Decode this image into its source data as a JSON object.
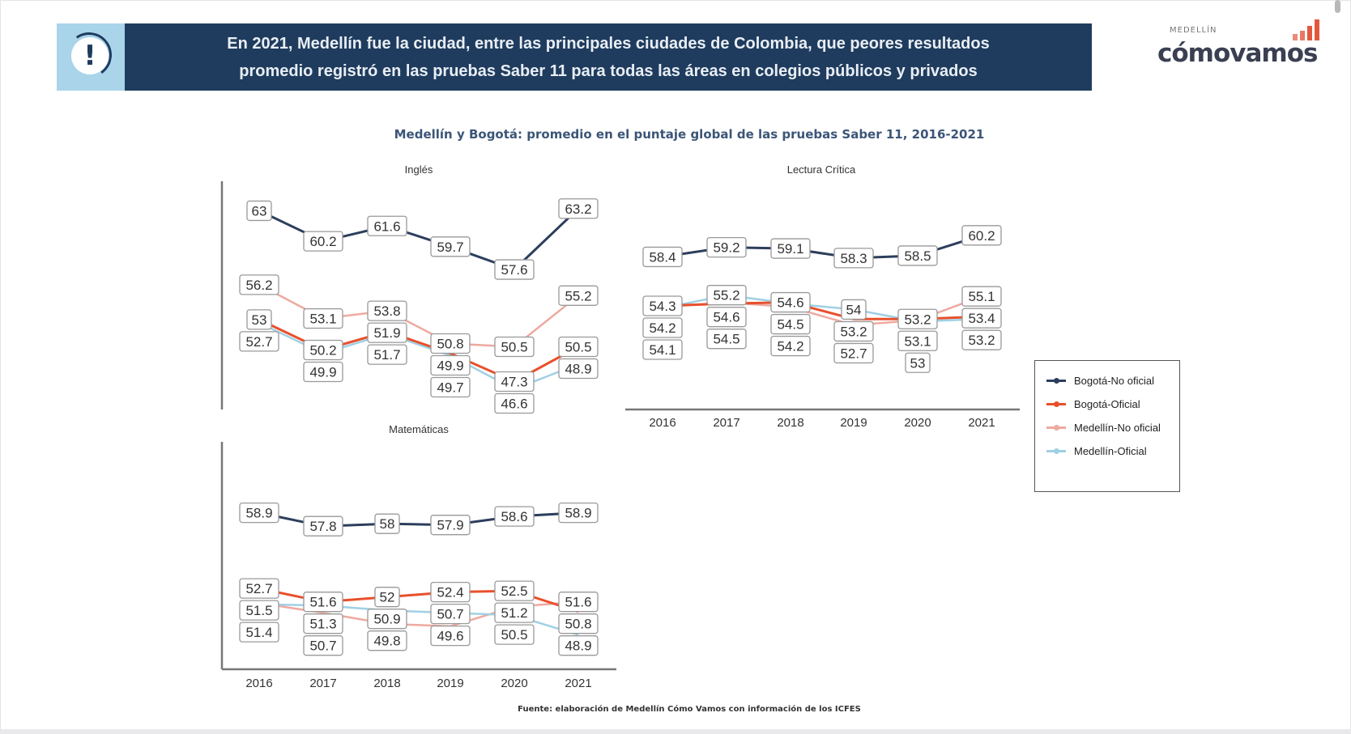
{
  "header": {
    "icon": "exclamation-icon",
    "line1": "En 2021, Medellín fue la ciudad, entre las principales ciudades de Colombia, que peores resultados",
    "line2": "promedio registró en las pruebas Saber 11 para todas las áreas en colegios públicos y privados"
  },
  "logo": {
    "small": "MEDELLÍN",
    "main": "cómovamos"
  },
  "colors": {
    "header_bg": "#1f3c5e",
    "icon_bg": "#a9d4ea",
    "bogota_no_oficial": "#2c3e5c",
    "bogota_oficial": "#e8502c",
    "medellin_no_oficial": "#eea9a0",
    "medellin_oficial": "#9fd0e4"
  },
  "chart_title": "Medellín y Bogotá: promedio en el puntaje global de las pruebas Saber 11, 2016-2021",
  "footnote": "Fuente: elaboración de Medellín Cómo Vamos con información de los ICFES",
  "legend": [
    {
      "name": "Bogotá-No oficial",
      "color": "#2c3e5c"
    },
    {
      "name": "Bogotá-Oficial",
      "color": "#e8502c"
    },
    {
      "name": "Medellín-No oficial",
      "color": "#eea9a0"
    },
    {
      "name": "Medellín-Oficial",
      "color": "#9fd0e4"
    }
  ],
  "chart_data": [
    {
      "type": "line",
      "title": "Inglés",
      "categories": [
        "2016",
        "2017",
        "2018",
        "2019",
        "2020",
        "2021"
      ],
      "show_x_ticks": false,
      "legend": "right",
      "grid": false,
      "series": [
        {
          "name": "Bogotá-No oficial",
          "values": [
            63,
            60.2,
            61.6,
            59.7,
            57.6,
            63.2
          ]
        },
        {
          "name": "Bogotá-Oficial",
          "values": [
            53.0,
            50.2,
            51.9,
            49.9,
            47.3,
            50.5
          ]
        },
        {
          "name": "Medellín-No oficial",
          "values": [
            56.2,
            53.1,
            53.8,
            50.8,
            50.5,
            55.2
          ]
        },
        {
          "name": "Medellín-Oficial",
          "values": [
            52.7,
            49.9,
            51.7,
            49.7,
            46.6,
            48.9
          ]
        }
      ]
    },
    {
      "type": "line",
      "title": "Lectura Crítica",
      "categories": [
        "2016",
        "2017",
        "2018",
        "2019",
        "2020",
        "2021"
      ],
      "show_x_ticks": true,
      "grid": false,
      "series": [
        {
          "name": "Bogotá-No oficial",
          "values": [
            58.4,
            59.2,
            59.1,
            58.3,
            58.5,
            60.2
          ]
        },
        {
          "name": "Bogotá-Oficial",
          "values": [
            54.3,
            54.5,
            54.6,
            53.2,
            53.2,
            53.4
          ]
        },
        {
          "name": "Medellín-No oficial",
          "values": [
            54.2,
            54.6,
            54.2,
            52.7,
            53.1,
            55.1
          ]
        },
        {
          "name": "Medellín-Oficial",
          "values": [
            54.1,
            55.2,
            54.5,
            54.0,
            53.0,
            53.2
          ]
        }
      ]
    },
    {
      "type": "line",
      "title": "Matemáticas",
      "categories": [
        "2016",
        "2017",
        "2018",
        "2019",
        "2020",
        "2021"
      ],
      "show_x_ticks": true,
      "grid": false,
      "series": [
        {
          "name": "Bogotá-No oficial",
          "values": [
            58.9,
            57.8,
            58,
            57.9,
            58.6,
            58.9
          ]
        },
        {
          "name": "Bogotá-Oficial",
          "values": [
            52.7,
            51.6,
            52,
            52.4,
            52.5,
            50.8
          ]
        },
        {
          "name": "Medellín-No oficial",
          "values": [
            51.5,
            50.7,
            49.8,
            49.6,
            51.2,
            51.6
          ]
        },
        {
          "name": "Medellín-Oficial",
          "values": [
            51.4,
            51.3,
            50.9,
            50.7,
            50.5,
            48.9
          ]
        }
      ]
    }
  ]
}
